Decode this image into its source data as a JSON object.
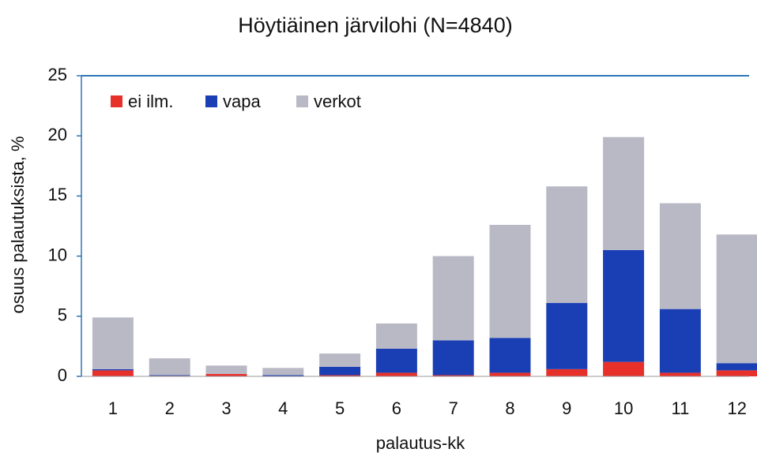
{
  "chart_data": {
    "type": "stacked_bar",
    "title": "Höytiäinen järvilohi (N=4840)",
    "xlabel": "palautus-kk",
    "ylabel": "osuus palautuksista, %",
    "categories": [
      "1",
      "2",
      "3",
      "4",
      "5",
      "6",
      "7",
      "8",
      "9",
      "10",
      "11",
      "12"
    ],
    "series": [
      {
        "name": "ei ilm.",
        "color": "#e8302a",
        "values": [
          0.5,
          0.05,
          0.2,
          0,
          0.1,
          0.3,
          0.1,
          0.3,
          0.6,
          1.2,
          0.3,
          0.5
        ]
      },
      {
        "name": "vapa",
        "color": "#1a3fb5",
        "values": [
          0.1,
          0.05,
          0,
          0.1,
          0.7,
          2.0,
          2.9,
          2.9,
          5.5,
          9.3,
          5.3,
          0.6
        ]
      },
      {
        "name": "verkot",
        "color": "#b9b9c5",
        "values": [
          4.3,
          1.4,
          0.7,
          0.6,
          1.1,
          2.1,
          7.0,
          9.4,
          9.7,
          9.4,
          8.8,
          10.7
        ]
      }
    ],
    "ylim": [
      0,
      25
    ],
    "yticks": [
      0,
      5,
      10,
      15,
      20,
      25
    ],
    "legend": "upper left"
  }
}
